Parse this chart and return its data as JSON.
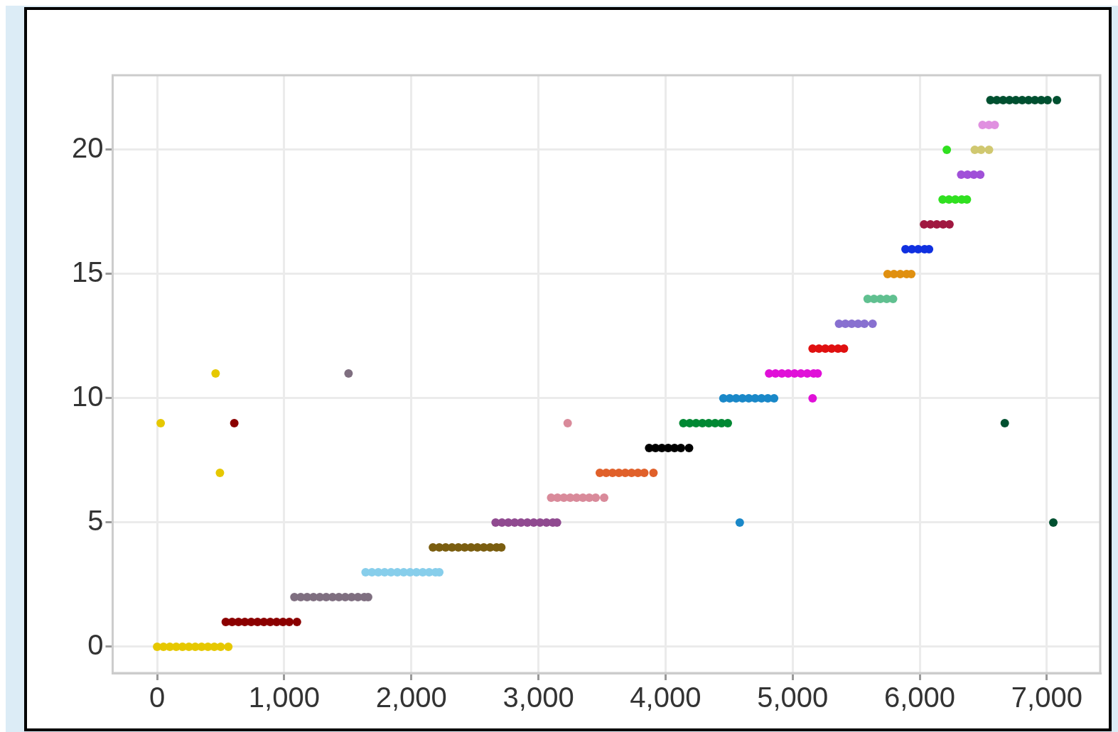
{
  "chart_data": {
    "type": "scatter",
    "marker": "circle",
    "grid": true,
    "legend": false,
    "xlim": [
      -350,
      7420
    ],
    "ylim": [
      -1.06,
      23
    ],
    "xticks": [
      {
        "value": 0,
        "label": "0"
      },
      {
        "value": 1000,
        "label": "1,000"
      },
      {
        "value": 2000,
        "label": "2,000"
      },
      {
        "value": 3000,
        "label": "3,000"
      },
      {
        "value": 4000,
        "label": "4,000"
      },
      {
        "value": 5000,
        "label": "5,000"
      },
      {
        "value": 6000,
        "label": "6,000"
      },
      {
        "value": 7000,
        "label": "7,000"
      }
    ],
    "yticks": [
      0,
      5,
      10,
      15,
      20
    ],
    "series": [
      {
        "color": "#e6c800",
        "x": [
          0,
          50,
          100,
          150,
          200,
          250,
          300,
          350,
          400,
          450,
          500,
          560,
          28,
          460,
          494
        ],
        "values": [
          0,
          0,
          0,
          0,
          0,
          0,
          0,
          0,
          0,
          0,
          0,
          0,
          9,
          11,
          7
        ]
      },
      {
        "color": "#8b0000",
        "x": [
          540,
          590,
          640,
          690,
          740,
          790,
          840,
          890,
          940,
          990,
          1040,
          1100,
          607
        ],
        "values": [
          1,
          1,
          1,
          1,
          1,
          1,
          1,
          1,
          1,
          1,
          1,
          1,
          9
        ]
      },
      {
        "color": "#7f6f80",
        "x": [
          1080,
          1130,
          1180,
          1230,
          1280,
          1330,
          1380,
          1430,
          1480,
          1530,
          1580,
          1630,
          1660,
          1506
        ],
        "values": [
          2,
          2,
          2,
          2,
          2,
          2,
          2,
          2,
          2,
          2,
          2,
          2,
          2,
          11
        ]
      },
      {
        "color": "#87ceeb",
        "x": [
          1640,
          1690,
          1740,
          1790,
          1840,
          1890,
          1940,
          1990,
          2040,
          2090,
          2140,
          2190,
          2220
        ],
        "values": [
          3,
          3,
          3,
          3,
          3,
          3,
          3,
          3,
          3,
          3,
          3,
          3,
          3
        ]
      },
      {
        "color": "#7b5e10",
        "x": [
          2170,
          2220,
          2270,
          2320,
          2370,
          2420,
          2470,
          2520,
          2570,
          2620,
          2670,
          2708
        ],
        "values": [
          4,
          4,
          4,
          4,
          4,
          4,
          4,
          4,
          4,
          4,
          4,
          4
        ]
      },
      {
        "color": "#904a90",
        "x": [
          2663,
          2713,
          2763,
          2813,
          2863,
          2913,
          2963,
          3013,
          3063,
          3113,
          3146
        ],
        "values": [
          5,
          5,
          5,
          5,
          5,
          5,
          5,
          5,
          5,
          5,
          5
        ]
      },
      {
        "color": "#d98a9a",
        "x": [
          3100,
          3150,
          3200,
          3250,
          3300,
          3350,
          3400,
          3450,
          3517,
          3230
        ],
        "values": [
          6,
          6,
          6,
          6,
          6,
          6,
          6,
          6,
          6,
          9
        ]
      },
      {
        "color": "#e0602a",
        "x": [
          3483,
          3533,
          3583,
          3633,
          3683,
          3733,
          3783,
          3833,
          3905
        ],
        "values": [
          7,
          7,
          7,
          7,
          7,
          7,
          7,
          7,
          7
        ]
      },
      {
        "color": "#000000",
        "x": [
          3871,
          3921,
          3971,
          4021,
          4071,
          4121,
          4185
        ],
        "values": [
          8,
          8,
          8,
          8,
          8,
          8,
          8
        ]
      },
      {
        "color": "#008833",
        "x": [
          4140,
          4190,
          4240,
          4290,
          4340,
          4390,
          4440,
          4490
        ],
        "values": [
          9,
          9,
          9,
          9,
          9,
          9,
          9,
          9
        ]
      },
      {
        "color": "#1a88c8",
        "x": [
          4455,
          4505,
          4555,
          4605,
          4655,
          4705,
          4755,
          4805,
          4854,
          4584
        ],
        "values": [
          10,
          10,
          10,
          10,
          10,
          10,
          10,
          10,
          10,
          5
        ]
      },
      {
        "color": "#e010d8",
        "x": [
          4815,
          4865,
          4915,
          4965,
          5015,
          5065,
          5115,
          5165,
          5197,
          5157
        ],
        "values": [
          11,
          11,
          11,
          11,
          11,
          11,
          11,
          11,
          11,
          10
        ]
      },
      {
        "color": "#e01010",
        "x": [
          5157,
          5207,
          5257,
          5307,
          5357,
          5404
        ],
        "values": [
          12,
          12,
          12,
          12,
          12,
          12
        ]
      },
      {
        "color": "#8870d0",
        "x": [
          5365,
          5415,
          5465,
          5515,
          5565,
          5629
        ],
        "values": [
          13,
          13,
          13,
          13,
          13,
          13
        ]
      },
      {
        "color": "#60c090",
        "x": [
          5590,
          5640,
          5690,
          5740,
          5790
        ],
        "values": [
          14,
          14,
          14,
          14,
          14
        ]
      },
      {
        "color": "#e09010",
        "x": [
          5747,
          5797,
          5847,
          5897,
          5933
        ],
        "values": [
          15,
          15,
          15,
          15,
          15
        ]
      },
      {
        "color": "#1030e0",
        "x": [
          5888,
          5938,
          5988,
          6038,
          6073
        ],
        "values": [
          16,
          16,
          16,
          16,
          16
        ]
      },
      {
        "color": "#a01840",
        "x": [
          6034,
          6084,
          6134,
          6184,
          6234
        ],
        "values": [
          17,
          17,
          17,
          17,
          17
        ]
      },
      {
        "color": "#30e020",
        "x": [
          6180,
          6230,
          6280,
          6330,
          6371,
          6213
        ],
        "values": [
          18,
          18,
          18,
          18,
          18,
          20
        ]
      },
      {
        "color": "#a050d8",
        "x": [
          6326,
          6376,
          6426,
          6476
        ],
        "values": [
          19,
          19,
          19,
          19
        ]
      },
      {
        "color": "#d0c870",
        "x": [
          6433,
          6483,
          6545
        ],
        "values": [
          20,
          20,
          20
        ]
      },
      {
        "color": "#e090e0",
        "x": [
          6494,
          6544,
          6590
        ],
        "values": [
          21,
          21,
          21
        ]
      },
      {
        "color": "#005030",
        "x": [
          6556,
          6606,
          6656,
          6706,
          6756,
          6806,
          6856,
          6906,
          6956,
          7006,
          7079,
          6669,
          7051
        ],
        "values": [
          22,
          22,
          22,
          22,
          22,
          22,
          22,
          22,
          22,
          22,
          22,
          9,
          5
        ]
      }
    ]
  }
}
